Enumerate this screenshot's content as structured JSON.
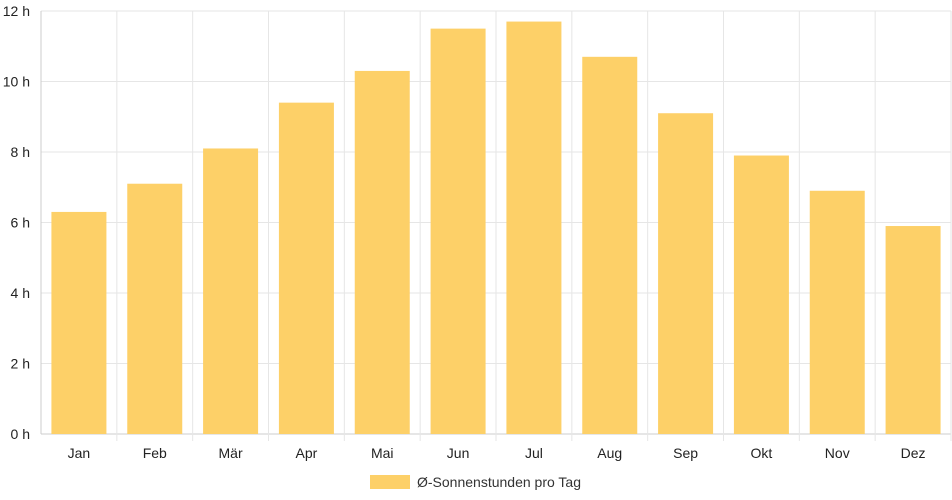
{
  "chart_data": {
    "type": "bar",
    "categories": [
      "Jan",
      "Feb",
      "Mär",
      "Apr",
      "Mai",
      "Jun",
      "Jul",
      "Aug",
      "Sep",
      "Okt",
      "Nov",
      "Dez"
    ],
    "series": [
      {
        "name": "Ø-Sonnenstunden pro Tag",
        "values": [
          6.3,
          7.1,
          8.1,
          9.4,
          10.3,
          11.5,
          11.7,
          10.7,
          9.1,
          7.9,
          6.9,
          5.9
        ],
        "color": "#fdd068"
      }
    ],
    "y_ticks": [
      "0 h",
      "2 h",
      "4 h",
      "6 h",
      "8 h",
      "10 h",
      "12 h"
    ],
    "ylim": [
      0,
      12
    ],
    "grid": true,
    "legend_position": "bottom"
  }
}
